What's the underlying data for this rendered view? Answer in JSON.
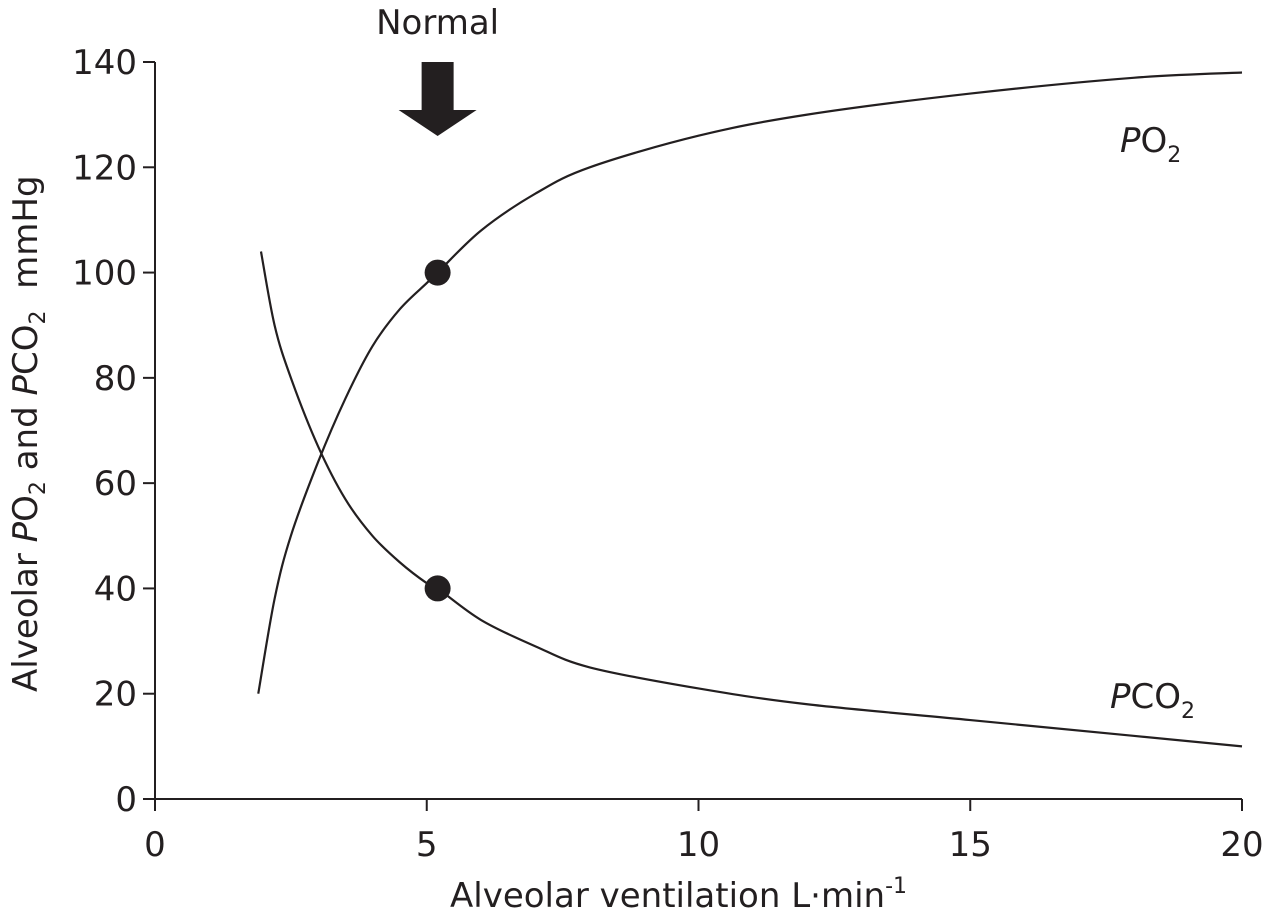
{
  "chart_data": {
    "type": "line",
    "xlabel": "Alveolar ventilation L·min-1",
    "xlabel_parts": {
      "main": "Alveolar ventilation L·min",
      "sup": "-1"
    },
    "ylabel_parts": {
      "prefix": "Alveolar ",
      "p1": "P",
      "p1_sub_main": "O",
      "p1_sub_index": "2",
      "mid": " and ",
      "p2": "P",
      "p2_sub_main": "CO",
      "p2_sub_index": "2",
      "suffix": "  mmHg"
    },
    "xlim": [
      0,
      20
    ],
    "ylim": [
      0,
      140
    ],
    "x_ticks": [
      "0",
      "5",
      "10",
      "15",
      "20"
    ],
    "y_ticks": [
      "0",
      "20",
      "40",
      "60",
      "80",
      "100",
      "120",
      "140"
    ],
    "grid": false,
    "series": [
      {
        "name": "PO2",
        "label_parts": {
          "main": "P",
          "sub_main": "O",
          "sub_index": "2"
        },
        "color": "#231f20",
        "x": [
          1.9,
          2.2,
          2.5,
          3.0,
          3.5,
          4.0,
          4.5,
          5.0,
          5.2,
          6.0,
          7.0,
          8.0,
          10.0,
          12.0,
          15.0,
          18.0,
          20.0
        ],
        "y": [
          20,
          38,
          50,
          64,
          76,
          86,
          93,
          98,
          100,
          108,
          115,
          120,
          126,
          130,
          134,
          137,
          138
        ]
      },
      {
        "name": "PCO2",
        "label_parts": {
          "main": "P",
          "sub_main": "CO",
          "sub_index": "2"
        },
        "color": "#231f20",
        "x": [
          1.95,
          2.2,
          2.5,
          3.0,
          3.5,
          4.0,
          4.5,
          5.0,
          5.2,
          6.0,
          7.0,
          8.0,
          10.0,
          12.0,
          15.0,
          18.0,
          20.0
        ],
        "y": [
          104,
          90,
          80,
          67,
          57,
          50,
          45,
          41,
          40,
          34,
          29,
          25,
          21,
          18,
          15,
          12,
          10
        ]
      }
    ],
    "points": [
      {
        "x": 5.2,
        "y": 100,
        "series": "PO2"
      },
      {
        "x": 5.2,
        "y": 40,
        "series": "PCO2"
      }
    ],
    "annotation": {
      "text": "Normal",
      "x": 5.2,
      "icon": "down-arrow-icon"
    }
  }
}
